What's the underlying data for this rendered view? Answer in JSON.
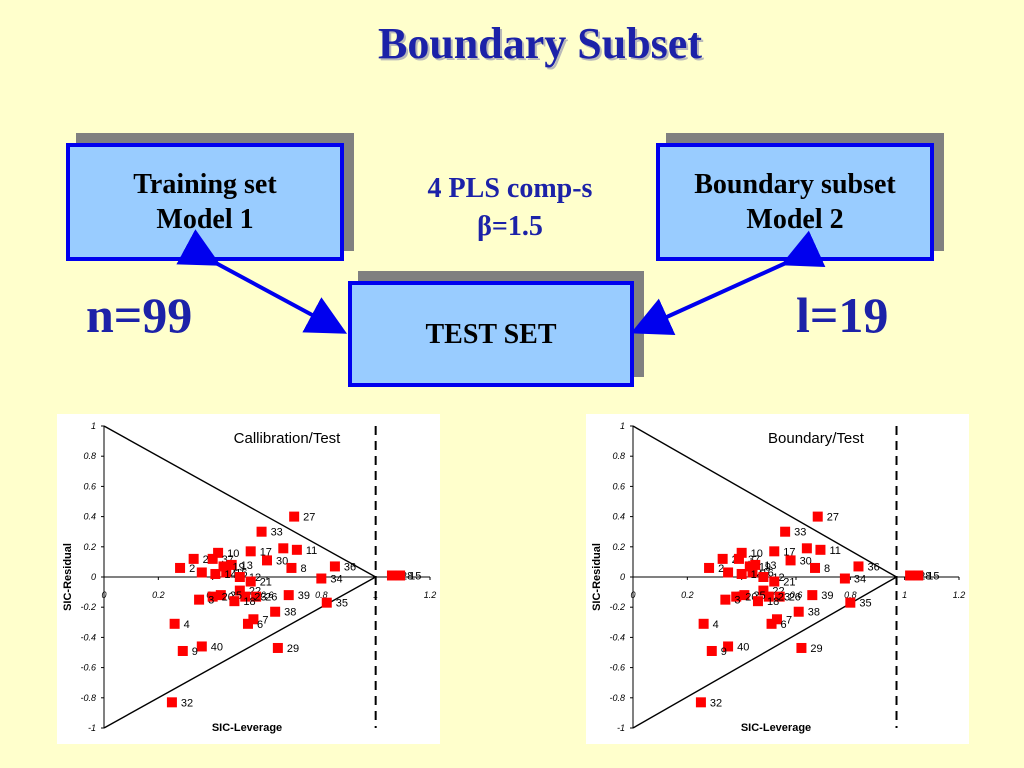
{
  "title": "Boundary Subset",
  "colors": {
    "background": "#ffffcc",
    "box_fill": "#99ccff",
    "box_border": "#0000ee",
    "accent": "#1c22a8",
    "points": "#ff0000"
  },
  "boxes": {
    "training": {
      "line1": "Training set",
      "line2": "Model 1"
    },
    "boundary": {
      "line1": "Boundary subset",
      "line2": "Model 2"
    },
    "test": {
      "label": "TEST SET"
    }
  },
  "center_text": {
    "line1": "4 PLS comp-s",
    "line2": "β=1.5"
  },
  "n_label": "n=99",
  "l_label": "l=19",
  "chart_data": [
    {
      "type": "scatter",
      "title": "Callibration/Test",
      "xlabel": "SIC-Leverage",
      "ylabel": "SIC-Residual",
      "xlim": [
        0,
        1.2
      ],
      "ylim": [
        -1,
        1
      ],
      "x_ticks": [
        "0",
        "0.2",
        "0.4",
        "0.6",
        "0.8",
        "1",
        "1.2"
      ],
      "y_ticks": [
        "1",
        "0.8",
        "0.6",
        "0.4",
        "0.2",
        "0",
        "-0.2",
        "-0.4",
        "-0.6",
        "-0.8",
        "-1"
      ],
      "cutoff_x": 1.0,
      "points": [
        {
          "label": "27",
          "x": 0.7,
          "y": 0.4
        },
        {
          "label": "33",
          "x": 0.58,
          "y": 0.3
        },
        {
          "label": "17",
          "x": 0.54,
          "y": 0.17
        },
        {
          "label": "5",
          "x": 0.66,
          "y": 0.19
        },
        {
          "label": "11",
          "x": 0.71,
          "y": 0.18
        },
        {
          "label": "10",
          "x": 0.42,
          "y": 0.16
        },
        {
          "label": "30",
          "x": 0.6,
          "y": 0.11
        },
        {
          "label": "36",
          "x": 0.85,
          "y": 0.07
        },
        {
          "label": "8",
          "x": 0.69,
          "y": 0.06
        },
        {
          "label": "34",
          "x": 0.8,
          "y": -0.01
        },
        {
          "label": "28",
          "x": 1.06,
          "y": 0.01
        },
        {
          "label": "15",
          "x": 1.09,
          "y": 0.01
        },
        {
          "label": "2",
          "x": 0.28,
          "y": 0.06
        },
        {
          "label": "24",
          "x": 0.33,
          "y": 0.12
        },
        {
          "label": "37",
          "x": 0.4,
          "y": 0.12
        },
        {
          "label": "13",
          "x": 0.47,
          "y": 0.08
        },
        {
          "label": "19",
          "x": 0.44,
          "y": 0.07
        },
        {
          "label": "16",
          "x": 0.45,
          "y": 0.03
        },
        {
          "label": "1",
          "x": 0.36,
          "y": 0.03
        },
        {
          "label": "14",
          "x": 0.41,
          "y": 0.02
        },
        {
          "label": "12",
          "x": 0.5,
          "y": 0.0
        },
        {
          "label": "21",
          "x": 0.54,
          "y": -0.03
        },
        {
          "label": "22",
          "x": 0.5,
          "y": -0.09
        },
        {
          "label": "26",
          "x": 0.56,
          "y": -0.13
        },
        {
          "label": "23",
          "x": 0.52,
          "y": -0.13
        },
        {
          "label": "25",
          "x": 0.43,
          "y": -0.12
        },
        {
          "label": "20",
          "x": 0.4,
          "y": -0.13
        },
        {
          "label": "18",
          "x": 0.48,
          "y": -0.16
        },
        {
          "label": "3",
          "x": 0.35,
          "y": -0.15
        },
        {
          "label": "39",
          "x": 0.68,
          "y": -0.12
        },
        {
          "label": "38",
          "x": 0.63,
          "y": -0.23
        },
        {
          "label": "35",
          "x": 0.82,
          "y": -0.17
        },
        {
          "label": "7",
          "x": 0.55,
          "y": -0.28
        },
        {
          "label": "6",
          "x": 0.53,
          "y": -0.31
        },
        {
          "label": "4",
          "x": 0.26,
          "y": -0.31
        },
        {
          "label": "40",
          "x": 0.36,
          "y": -0.46
        },
        {
          "label": "9",
          "x": 0.29,
          "y": -0.49
        },
        {
          "label": "29",
          "x": 0.64,
          "y": -0.47
        },
        {
          "label": "32",
          "x": 0.25,
          "y": -0.83
        }
      ]
    },
    {
      "type": "scatter",
      "title": "Boundary/Test",
      "xlabel": "SIC-Leverage",
      "ylabel": "SIC-Residual",
      "xlim": [
        0,
        1.2
      ],
      "ylim": [
        -1,
        1
      ],
      "x_ticks": [
        "0",
        "0.2",
        "0.4",
        "0.6",
        "0.8",
        "1",
        "1.2"
      ],
      "y_ticks": [
        "1",
        "0.8",
        "0.6",
        "0.4",
        "0.2",
        "0",
        "-0.2",
        "-0.4",
        "-0.6",
        "-0.8",
        "-1"
      ],
      "cutoff_x": 0.97,
      "points": [
        {
          "label": "27",
          "x": 0.68,
          "y": 0.4
        },
        {
          "label": "33",
          "x": 0.56,
          "y": 0.3
        },
        {
          "label": "17",
          "x": 0.52,
          "y": 0.17
        },
        {
          "label": "5",
          "x": 0.64,
          "y": 0.19
        },
        {
          "label": "11",
          "x": 0.69,
          "y": 0.18
        },
        {
          "label": "10",
          "x": 0.4,
          "y": 0.16
        },
        {
          "label": "30",
          "x": 0.58,
          "y": 0.11
        },
        {
          "label": "36",
          "x": 0.83,
          "y": 0.07
        },
        {
          "label": "8",
          "x": 0.67,
          "y": 0.06
        },
        {
          "label": "34",
          "x": 0.78,
          "y": -0.01
        },
        {
          "label": "28",
          "x": 1.02,
          "y": 0.01
        },
        {
          "label": "15",
          "x": 1.05,
          "y": 0.01
        },
        {
          "label": "2",
          "x": 0.28,
          "y": 0.06
        },
        {
          "label": "24",
          "x": 0.33,
          "y": 0.12
        },
        {
          "label": "37",
          "x": 0.39,
          "y": 0.12
        },
        {
          "label": "13",
          "x": 0.45,
          "y": 0.08
        },
        {
          "label": "19",
          "x": 0.43,
          "y": 0.07
        },
        {
          "label": "16",
          "x": 0.44,
          "y": 0.03
        },
        {
          "label": "1",
          "x": 0.35,
          "y": 0.03
        },
        {
          "label": "14",
          "x": 0.4,
          "y": 0.02
        },
        {
          "label": "12",
          "x": 0.48,
          "y": 0.0
        },
        {
          "label": "21",
          "x": 0.52,
          "y": -0.03
        },
        {
          "label": "22",
          "x": 0.48,
          "y": -0.09
        },
        {
          "label": "26",
          "x": 0.54,
          "y": -0.13
        },
        {
          "label": "23",
          "x": 0.5,
          "y": -0.13
        },
        {
          "label": "25",
          "x": 0.41,
          "y": -0.12
        },
        {
          "label": "20",
          "x": 0.38,
          "y": -0.13
        },
        {
          "label": "18",
          "x": 0.46,
          "y": -0.16
        },
        {
          "label": "3",
          "x": 0.34,
          "y": -0.15
        },
        {
          "label": "39",
          "x": 0.66,
          "y": -0.12
        },
        {
          "label": "38",
          "x": 0.61,
          "y": -0.23
        },
        {
          "label": "35",
          "x": 0.8,
          "y": -0.17
        },
        {
          "label": "7",
          "x": 0.53,
          "y": -0.28
        },
        {
          "label": "6",
          "x": 0.51,
          "y": -0.31
        },
        {
          "label": "4",
          "x": 0.26,
          "y": -0.31
        },
        {
          "label": "40",
          "x": 0.35,
          "y": -0.46
        },
        {
          "label": "9",
          "x": 0.29,
          "y": -0.49
        },
        {
          "label": "29",
          "x": 0.62,
          "y": -0.47
        },
        {
          "label": "32",
          "x": 0.25,
          "y": -0.83
        }
      ]
    }
  ]
}
